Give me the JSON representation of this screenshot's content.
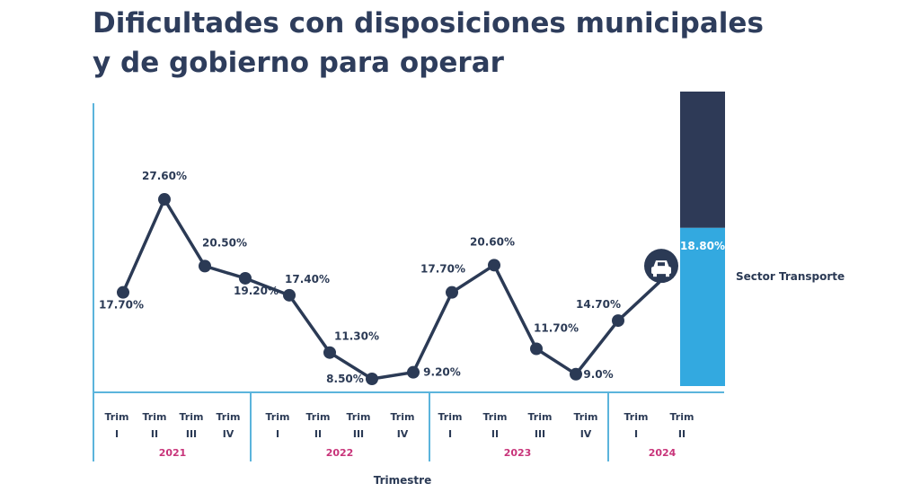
{
  "header": {
    "title_line1": "Dificultades con disposiciones municipales",
    "title_line2": "y de gobierno para operar"
  },
  "chart_data": {
    "type": "line",
    "xlabel": "Trimestre",
    "ylabel": "",
    "ylim": [
      0,
      30
    ],
    "grid": false,
    "points": [
      {
        "q1": "Trim",
        "q2": "I",
        "year": "2021",
        "value": 17.7,
        "label": "17.70%"
      },
      {
        "q1": "Trim",
        "q2": "II",
        "year": "2021",
        "value": 27.6,
        "label": "27.60%"
      },
      {
        "q1": "Trim",
        "q2": "III",
        "year": "2021",
        "value": 20.5,
        "label": "20.50%"
      },
      {
        "q1": "Trim",
        "q2": "IV",
        "year": "2021",
        "value": 19.2,
        "label": "19.20%"
      },
      {
        "q1": "Trim",
        "q2": "I",
        "year": "2022",
        "value": 17.4,
        "label": "17.40%"
      },
      {
        "q1": "Trim",
        "q2": "II",
        "year": "2022",
        "value": 11.3,
        "label": "11.30%"
      },
      {
        "q1": "Trim",
        "q2": "III",
        "year": "2022",
        "value": 8.5,
        "label": "8.50%"
      },
      {
        "q1": "Trim",
        "q2": "IV",
        "year": "2022",
        "value": 9.2,
        "label": "9.20%"
      },
      {
        "q1": "Trim",
        "q2": "I",
        "year": "2023",
        "value": 17.7,
        "label": "17.70%"
      },
      {
        "q1": "Trim",
        "q2": "II",
        "year": "2023",
        "value": 20.6,
        "label": "20.60%"
      },
      {
        "q1": "Trim",
        "q2": "III",
        "year": "2023",
        "value": 11.7,
        "label": "11.70%"
      },
      {
        "q1": "Trim",
        "q2": "IV",
        "year": "2023",
        "value": 9.0,
        "label": "9.0%"
      },
      {
        "q1": "Trim",
        "q2": "I",
        "year": "2024",
        "value": 14.7,
        "label": "14.70%"
      },
      {
        "q1": "Trim",
        "q2": "II",
        "year": "2024",
        "value": 18.8,
        "label": ""
      }
    ],
    "years": [
      "2021",
      "2022",
      "2023",
      "2024"
    ],
    "last_point_icon": "car-icon",
    "side_bar": {
      "label": "Sector Transporte",
      "value": 18.8,
      "value_label": "18.80%",
      "total": 100,
      "colors": {
        "fill": "#33a9e0",
        "rest": "#2e3a57"
      }
    },
    "colors": {
      "line": "#2b3a55",
      "axis": "#5bb4dc",
      "title": "#2e3d5c",
      "year": "#c8347a"
    }
  }
}
